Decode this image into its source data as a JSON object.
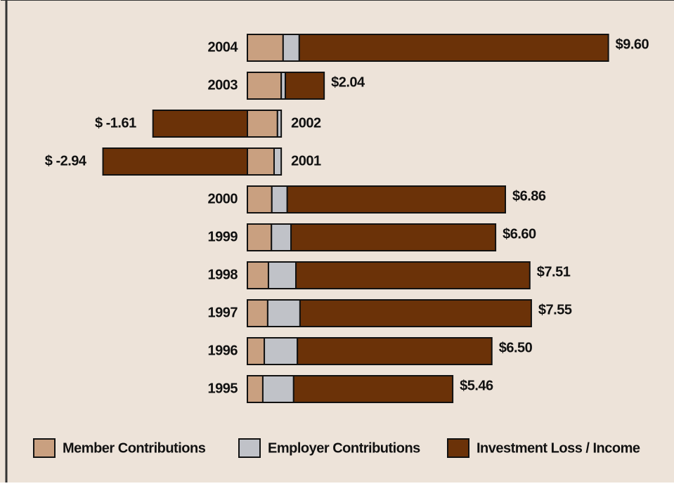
{
  "chart_data": {
    "type": "stacked-bar-horizontal",
    "categories": [
      "2004",
      "2003",
      "2002",
      "2001",
      "2000",
      "1999",
      "1998",
      "1997",
      "1996",
      "1995"
    ],
    "series": [
      {
        "name": "Member Contributions",
        "color": "#c9a080",
        "values": [
          0.95,
          0.9,
          0.8,
          0.71,
          0.65,
          0.64,
          0.56,
          0.54,
          0.45,
          0.41
        ]
      },
      {
        "name": "Employer Contributions",
        "color": "#c0c2c8",
        "values": [
          0.43,
          0.11,
          0.1,
          0.19,
          0.41,
          0.52,
          0.73,
          0.86,
          0.88,
          0.82
        ]
      },
      {
        "name": "Investment Loss / Income",
        "color": "#6b3208",
        "values": [
          8.22,
          1.03,
          -2.51,
          -3.84,
          5.8,
          5.44,
          6.22,
          6.15,
          5.17,
          4.23
        ]
      }
    ],
    "totals": [
      9.6,
      2.04,
      -1.61,
      -2.94,
      6.86,
      6.6,
      7.51,
      7.55,
      6.5,
      5.46
    ],
    "total_labels": [
      "$9.60",
      "$2.04",
      "$ -1.61",
      "$ -2.94",
      "$6.86",
      "$6.60",
      "$7.51",
      "$7.55",
      "$6.50",
      "$5.46"
    ],
    "xlim": [
      -4,
      10
    ]
  }
}
